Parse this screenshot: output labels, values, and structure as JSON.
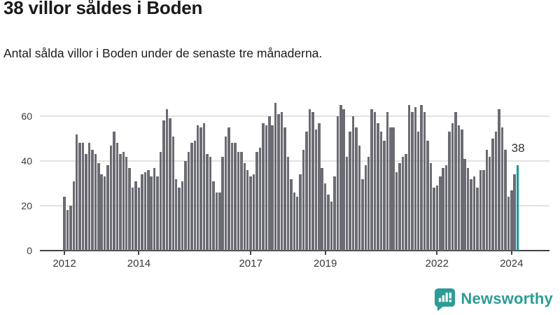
{
  "header": {
    "title": "38 villor såldes i Boden",
    "subtitle": "Antal sålda villor i Boden under de senaste tre månaderna."
  },
  "annotation": {
    "last_value_label": "38"
  },
  "footer": {
    "brand": "Newsworthy"
  },
  "colors": {
    "bar": "#6b6b73",
    "accent": "#0d9c9c",
    "brand": "#2d9c97",
    "grid": "#e2e2e2",
    "axis": "#434343",
    "text": "#1a1a1a",
    "tick_text": "#3a3a3a"
  },
  "chart_data": {
    "type": "bar",
    "title": "38 villor såldes i Boden",
    "xlabel": "",
    "ylabel": "",
    "frequency": "monthly",
    "x_start": "2012-01",
    "x_end": "2024-03",
    "ylim": [
      0,
      68
    ],
    "grid": true,
    "yticks": [
      0,
      20,
      40,
      60
    ],
    "xticks": [
      {
        "label": "2012",
        "month_index": 0
      },
      {
        "label": "2014",
        "month_index": 24
      },
      {
        "label": "2017",
        "month_index": 60
      },
      {
        "label": "2019",
        "month_index": 84
      },
      {
        "label": "2022",
        "month_index": 120
      },
      {
        "label": "2024",
        "month_index": 144
      }
    ],
    "highlight_last_bar": true,
    "values": [
      24,
      18,
      20,
      31,
      52,
      48,
      48,
      43,
      48,
      45,
      43,
      39,
      34,
      33,
      38,
      47,
      53,
      48,
      43,
      44,
      42,
      37,
      28,
      31,
      28,
      34,
      35,
      36,
      33,
      37,
      33,
      44,
      58,
      63,
      59,
      51,
      32,
      28,
      31,
      40,
      44,
      48,
      49,
      56,
      55,
      57,
      43,
      42,
      31,
      26,
      26,
      42,
      51,
      55,
      48,
      48,
      44,
      44,
      39,
      36,
      33,
      34,
      44,
      46,
      57,
      56,
      60,
      56,
      66,
      61,
      62,
      55,
      42,
      32,
      26,
      24,
      34,
      45,
      53,
      63,
      62,
      54,
      57,
      37,
      30,
      25,
      22,
      33,
      60,
      65,
      63,
      42,
      53,
      60,
      55,
      47,
      32,
      38,
      42,
      63,
      62,
      57,
      53,
      49,
      62,
      55,
      55,
      35,
      39,
      42,
      43,
      65,
      62,
      64,
      53,
      65,
      62,
      49,
      39,
      28,
      29,
      33,
      37,
      38,
      53,
      57,
      62,
      56,
      54,
      41,
      37,
      32,
      33,
      28,
      36,
      36,
      45,
      42,
      50,
      53,
      63,
      55,
      45,
      24,
      27,
      34,
      38
    ]
  }
}
